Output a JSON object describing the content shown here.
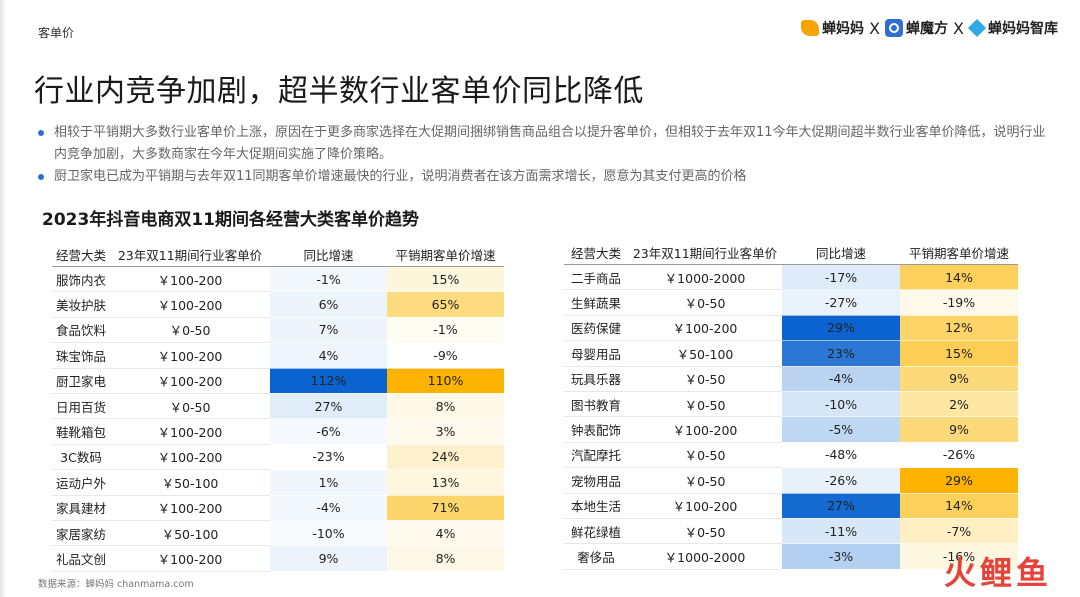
{
  "header": {
    "section_label": "客单价",
    "brands": [
      "蝉妈妈",
      "蝉魔方",
      "蝉妈妈智库"
    ],
    "separator": "X"
  },
  "title": "行业内竞争加剧，超半数行业客单价同比降低",
  "bullets": [
    "相较于平销期大多数行业客单价上涨，原因在于更多商家选择在大促期间捆绑销售商品组合以提升客单价，但相较于去年双11今年大促期间超半数行业客单价降低，说明行业内竞争加剧，大多数商家在今年大促期间实施了降价策略。",
    "厨卫家电已成为平销期与去年双11同期客单价增速最快的行业，说明消费者在该方面需求增长，愿意为其支付更高的价格"
  ],
  "subtitle": "2023年抖音电商双11期间各经营大类客单价趋势",
  "table_headers": [
    "经营大类",
    "23年双11期间行业客单价",
    "同比增速",
    "平销期客单价增速"
  ],
  "colors": {
    "blue_scale": [
      "#ffffff",
      "#d6e6f7",
      "#0a63cf"
    ],
    "yellow_scale": [
      "#ffffff",
      "#fde8a6",
      "#fbb300"
    ]
  },
  "left_rows": [
    {
      "cat": "服饰内衣",
      "price": "￥100-200",
      "yoy": "-1%",
      "flat": "15%",
      "yoy_v": -1,
      "flat_v": 15
    },
    {
      "cat": "美妆护肤",
      "price": "￥100-200",
      "yoy": "6%",
      "flat": "65%",
      "yoy_v": 6,
      "flat_v": 65
    },
    {
      "cat": "食品饮料",
      "price": "￥0-50",
      "yoy": "7%",
      "flat": "-1%",
      "yoy_v": 7,
      "flat_v": -1
    },
    {
      "cat": "珠宝饰品",
      "price": "￥100-200",
      "yoy": "4%",
      "flat": "-9%",
      "yoy_v": 4,
      "flat_v": -9
    },
    {
      "cat": "厨卫家电",
      "price": "￥100-200",
      "yoy": "112%",
      "flat": "110%",
      "yoy_v": 112,
      "flat_v": 110
    },
    {
      "cat": "日用百货",
      "price": "￥0-50",
      "yoy": "27%",
      "flat": "8%",
      "yoy_v": 27,
      "flat_v": 8
    },
    {
      "cat": "鞋靴箱包",
      "price": "￥100-200",
      "yoy": "-6%",
      "flat": "3%",
      "yoy_v": -6,
      "flat_v": 3
    },
    {
      "cat": "3C数码",
      "price": "￥100-200",
      "yoy": "-23%",
      "flat": "24%",
      "yoy_v": -23,
      "flat_v": 24
    },
    {
      "cat": "运动户外",
      "price": "￥50-100",
      "yoy": "1%",
      "flat": "13%",
      "yoy_v": 1,
      "flat_v": 13
    },
    {
      "cat": "家具建材",
      "price": "￥100-200",
      "yoy": "-4%",
      "flat": "71%",
      "yoy_v": -4,
      "flat_v": 71
    },
    {
      "cat": "家居家纺",
      "price": "￥50-100",
      "yoy": "-10%",
      "flat": "4%",
      "yoy_v": -10,
      "flat_v": 4
    },
    {
      "cat": "礼品文创",
      "price": "￥100-200",
      "yoy": "9%",
      "flat": "8%",
      "yoy_v": 9,
      "flat_v": 8
    }
  ],
  "right_rows": [
    {
      "cat": "二手商品",
      "price": "￥1000-2000",
      "yoy": "-17%",
      "flat": "14%",
      "yoy_v": -17,
      "flat_v": 14
    },
    {
      "cat": "生鲜蔬果",
      "price": "￥0-50",
      "yoy": "-27%",
      "flat": "-19%",
      "yoy_v": -27,
      "flat_v": -19
    },
    {
      "cat": "医药保健",
      "price": "￥100-200",
      "yoy": "29%",
      "flat": "12%",
      "yoy_v": 29,
      "flat_v": 12
    },
    {
      "cat": "母婴用品",
      "price": "￥50-100",
      "yoy": "23%",
      "flat": "15%",
      "yoy_v": 23,
      "flat_v": 15
    },
    {
      "cat": "玩具乐器",
      "price": "￥0-50",
      "yoy": "-4%",
      "flat": "9%",
      "yoy_v": -4,
      "flat_v": 9
    },
    {
      "cat": "图书教育",
      "price": "￥0-50",
      "yoy": "-10%",
      "flat": "2%",
      "yoy_v": -10,
      "flat_v": 2
    },
    {
      "cat": "钟表配饰",
      "price": "￥100-200",
      "yoy": "-5%",
      "flat": "9%",
      "yoy_v": -5,
      "flat_v": 9
    },
    {
      "cat": "汽配摩托",
      "price": "￥0-50",
      "yoy": "-48%",
      "flat": "-26%",
      "yoy_v": -48,
      "flat_v": -26
    },
    {
      "cat": "宠物用品",
      "price": "￥0-50",
      "yoy": "-26%",
      "flat": "29%",
      "yoy_v": -26,
      "flat_v": 29
    },
    {
      "cat": "本地生活",
      "price": "￥100-200",
      "yoy": "27%",
      "flat": "14%",
      "yoy_v": 27,
      "flat_v": 14
    },
    {
      "cat": "鲜花绿植",
      "price": "￥0-50",
      "yoy": "-11%",
      "flat": "-7%",
      "yoy_v": -11,
      "flat_v": -7
    },
    {
      "cat": "奢侈品",
      "price": "￥1000-2000",
      "yoy": "-3%",
      "flat": "-16%",
      "yoy_v": -3,
      "flat_v": -16
    }
  ],
  "footer": "数据来源：蝉妈妈 chanmama.com",
  "corner_mark": "火鲤鱼"
}
